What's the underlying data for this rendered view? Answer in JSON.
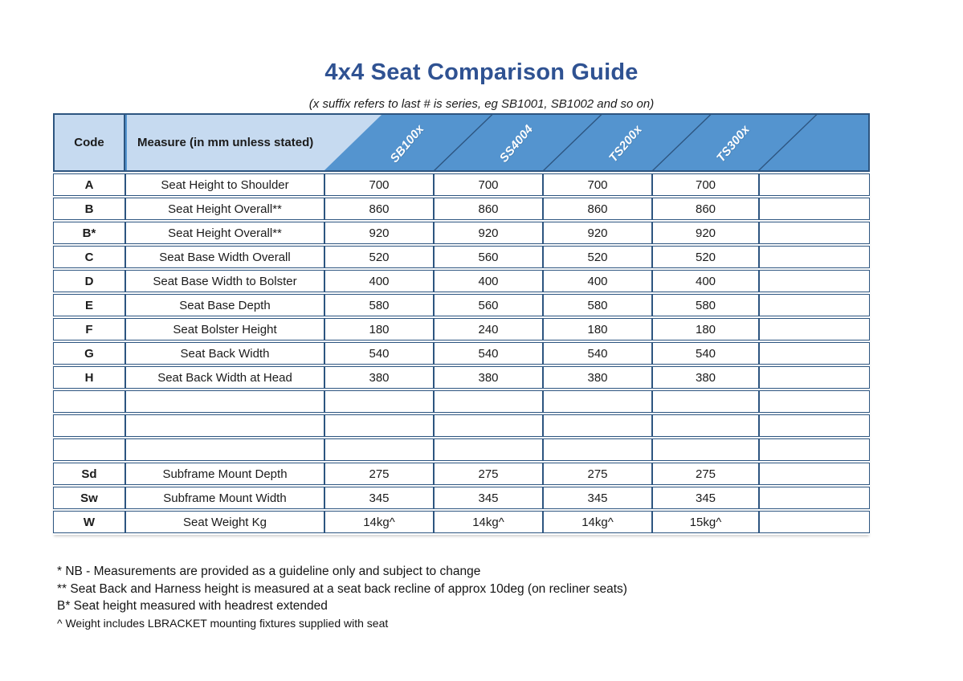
{
  "page": {
    "title": "4x4 Seat Comparison Guide",
    "subtitle": "(x suffix refers to last # is series, eg SB1001, SB1002 and so on)"
  },
  "colors": {
    "header_blue": "#5494cf",
    "header_light_blue": "#c6daf0",
    "table_border": "#2d5580",
    "title_blue": "#2f5292"
  },
  "table": {
    "code_header": "Code",
    "measure_header": "Measure (in mm unless stated)",
    "series_headers": [
      "SB100x",
      "SS4004",
      "TS200x",
      "TS300x"
    ],
    "rows": [
      {
        "code": "A",
        "measure": "Seat Height to Shoulder",
        "values": [
          "700",
          "700",
          "700",
          "700",
          ""
        ]
      },
      {
        "code": "B",
        "measure": "Seat Height Overall**",
        "values": [
          "860",
          "860",
          "860",
          "860",
          ""
        ]
      },
      {
        "code": "B*",
        "measure": "Seat Height Overall**",
        "values": [
          "920",
          "920",
          "920",
          "920",
          ""
        ]
      },
      {
        "code": "C",
        "measure": "Seat Base Width Overall",
        "values": [
          "520",
          "560",
          "520",
          "520",
          ""
        ]
      },
      {
        "code": "D",
        "measure": "Seat Base Width to Bolster",
        "values": [
          "400",
          "400",
          "400",
          "400",
          ""
        ]
      },
      {
        "code": "E",
        "measure": "Seat Base Depth",
        "values": [
          "580",
          "560",
          "580",
          "580",
          ""
        ]
      },
      {
        "code": "F",
        "measure": "Seat Bolster Height",
        "values": [
          "180",
          "240",
          "180",
          "180",
          ""
        ]
      },
      {
        "code": "G",
        "measure": "Seat Back Width",
        "values": [
          "540",
          "540",
          "540",
          "540",
          ""
        ]
      },
      {
        "code": "H",
        "measure": "Seat Back Width at Head",
        "values": [
          "380",
          "380",
          "380",
          "380",
          ""
        ]
      },
      {
        "code": "",
        "measure": "",
        "values": [
          "",
          "",
          "",
          "",
          ""
        ]
      },
      {
        "code": "",
        "measure": "",
        "values": [
          "",
          "",
          "",
          "",
          ""
        ]
      },
      {
        "code": "",
        "measure": "",
        "values": [
          "",
          "",
          "",
          "",
          ""
        ]
      },
      {
        "code": "Sd",
        "measure": "Subframe Mount Depth",
        "values": [
          "275",
          "275",
          "275",
          "275",
          ""
        ]
      },
      {
        "code": "Sw",
        "measure": "Subframe Mount Width",
        "values": [
          "345",
          "345",
          "345",
          "345",
          ""
        ]
      },
      {
        "code": "W",
        "measure": "Seat Weight Kg",
        "values": [
          "14kg^",
          "14kg^",
          "14kg^",
          "15kg^",
          ""
        ]
      }
    ]
  },
  "footnotes": [
    "* NB - Measurements are provided as a guideline only and subject to change",
    "** Seat Back and Harness height is measured at a seat back recline of approx 10deg (on recliner seats)",
    "B* Seat height measured with headrest extended",
    "^ Weight includes LBRACKET mounting fixtures supplied with seat"
  ]
}
